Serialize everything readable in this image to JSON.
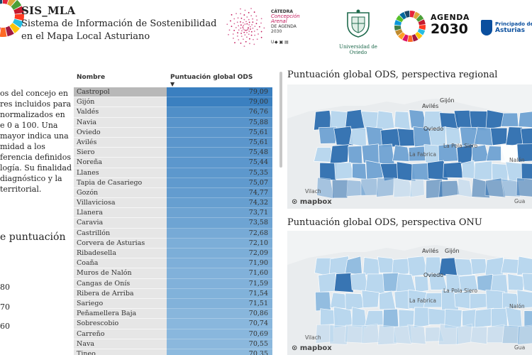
{
  "header": {
    "app_title": "SIS_MLA",
    "subtitle_line1": "Sistema de Información de Sostenibilidad",
    "subtitle_line2": "en el Mapa Local Asturiano",
    "catedra_line1": "CÁTEDRA",
    "catedra_line2": "Concepción",
    "catedra_line3": "Arenal",
    "catedra_line4": "DE AGENDA 2030",
    "uniovi_label": "Universidad de Oviedo",
    "agenda_word": "AGENDA",
    "agenda_year": "2030",
    "asturias_line1": "Principado de",
    "asturias_line2": "Asturias"
  },
  "description": {
    "lines": [
      "os del concejo en",
      "res incluidos para",
      "normalizados en",
      "e 0 a 100. Una",
      "mayor indica una",
      "midad a los",
      "ferencia definidos",
      "logía. Su finalidad",
      "diagnóstico y la",
      "territorial."
    ],
    "legend_title": "e puntuación",
    "legend_items": [
      "80",
      "70",
      "60"
    ]
  },
  "table": {
    "col_name": "Nombre",
    "col_score": "Puntuación global ODS",
    "rows": [
      {
        "name": "Castropol",
        "score": "79,09",
        "value": 79.09
      },
      {
        "name": "Gijón",
        "score": "79,00",
        "value": 79.0
      },
      {
        "name": "Valdés",
        "score": "76,76",
        "value": 76.76
      },
      {
        "name": "Navia",
        "score": "75,88",
        "value": 75.88
      },
      {
        "name": "Oviedo",
        "score": "75,61",
        "value": 75.61
      },
      {
        "name": "Avilés",
        "score": "75,61",
        "value": 75.61
      },
      {
        "name": "Siero",
        "score": "75,48",
        "value": 75.48
      },
      {
        "name": "Noreña",
        "score": "75,44",
        "value": 75.44
      },
      {
        "name": "Llanes",
        "score": "75,35",
        "value": 75.35
      },
      {
        "name": "Tapia de Casariego",
        "score": "75,07",
        "value": 75.07
      },
      {
        "name": "Gozón",
        "score": "74,77",
        "value": 74.77
      },
      {
        "name": "Villaviciosa",
        "score": "74,32",
        "value": 74.32
      },
      {
        "name": "Llanera",
        "score": "73,71",
        "value": 73.71
      },
      {
        "name": "Caravia",
        "score": "73,58",
        "value": 73.58
      },
      {
        "name": "Castrillón",
        "score": "72,68",
        "value": 72.68
      },
      {
        "name": "Corvera de Asturias",
        "score": "72,10",
        "value": 72.1
      },
      {
        "name": "Ribadesella",
        "score": "72,09",
        "value": 72.09
      },
      {
        "name": "Coaña",
        "score": "71,90",
        "value": 71.9
      },
      {
        "name": "Muros de Nalón",
        "score": "71,60",
        "value": 71.6
      },
      {
        "name": "Cangas de Onís",
        "score": "71,59",
        "value": 71.59
      },
      {
        "name": "Ribera de Arriba",
        "score": "71,54",
        "value": 71.54
      },
      {
        "name": "Sariego",
        "score": "71,51",
        "value": 71.51
      },
      {
        "name": "Peñamellera Baja",
        "score": "70,86",
        "value": 70.86
      },
      {
        "name": "Sobrescobio",
        "score": "70,74",
        "value": 70.74
      },
      {
        "name": "Carreño",
        "score": "70,69",
        "value": 70.69
      },
      {
        "name": "Nava",
        "score": "70,55",
        "value": 70.55
      },
      {
        "name": "Tineo",
        "score": "70,35",
        "value": 70.35
      }
    ]
  },
  "map_regional": {
    "title": "Puntuación global ODS, perspectiva regional",
    "labels": [
      "Avilés",
      "Gijón",
      "Oviedo",
      "La Pola Siero",
      "La Fabrica",
      "Nalón",
      "Vilach",
      "Gua"
    ],
    "attribution": "mapbox"
  },
  "map_onu": {
    "title": "Puntuación global ODS, perspectiva ONU",
    "labels": [
      "Avilés",
      "Gijón",
      "Oviedo",
      "La Pola Siero",
      "La Fabrica",
      "Nalón",
      "Vilach",
      "Gua"
    ],
    "attribution": "mapbox"
  },
  "colors": {
    "score_high": "#3a7fc0",
    "score_low": "#a8cde8",
    "name_cell": "#e6e6e6",
    "map_dark": "#2f6fb0",
    "map_light": "#b7d6ee",
    "sea": "#f1f3f4"
  }
}
